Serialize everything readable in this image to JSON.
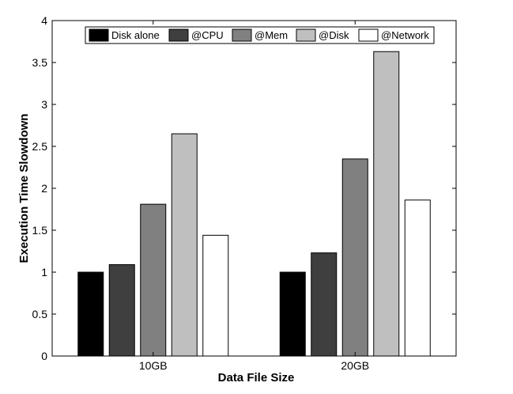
{
  "chart_data": {
    "type": "bar",
    "title": "",
    "xlabel": "Data File Size",
    "ylabel": "Execution Time Slowdown",
    "ylim": [
      0,
      4
    ],
    "yticks": [
      "0",
      "0.5",
      "1",
      "1.5",
      "2",
      "2.5",
      "3",
      "3.5",
      "4"
    ],
    "categories": [
      "10GB",
      "20GB"
    ],
    "grid": false,
    "legend_position": "top",
    "series": [
      {
        "name": "Disk alone",
        "color": "#000000",
        "values": [
          1.0,
          1.0
        ]
      },
      {
        "name": "@CPU",
        "color": "#3f3f3f",
        "values": [
          1.09,
          1.23
        ]
      },
      {
        "name": "@Mem",
        "color": "#808080",
        "values": [
          1.81,
          2.35
        ]
      },
      {
        "name": "@Disk",
        "color": "#bfbfbf",
        "values": [
          2.65,
          3.63
        ]
      },
      {
        "name": "@Network",
        "color": "#ffffff",
        "values": [
          1.44,
          1.86
        ]
      }
    ]
  }
}
